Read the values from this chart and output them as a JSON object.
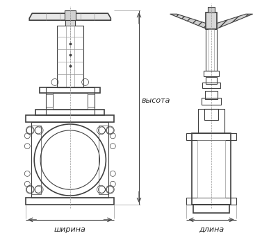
{
  "bg_color": "#ffffff",
  "line_color": "#404040",
  "line_color_light": "#999999",
  "label_color": "#222222",
  "label_vysota": "высота",
  "label_shirina": "ширина",
  "label_dlina": "длина",
  "label_fontsize": 8.0,
  "fig_width": 4.0,
  "fig_height": 3.46,
  "dpi": 100
}
